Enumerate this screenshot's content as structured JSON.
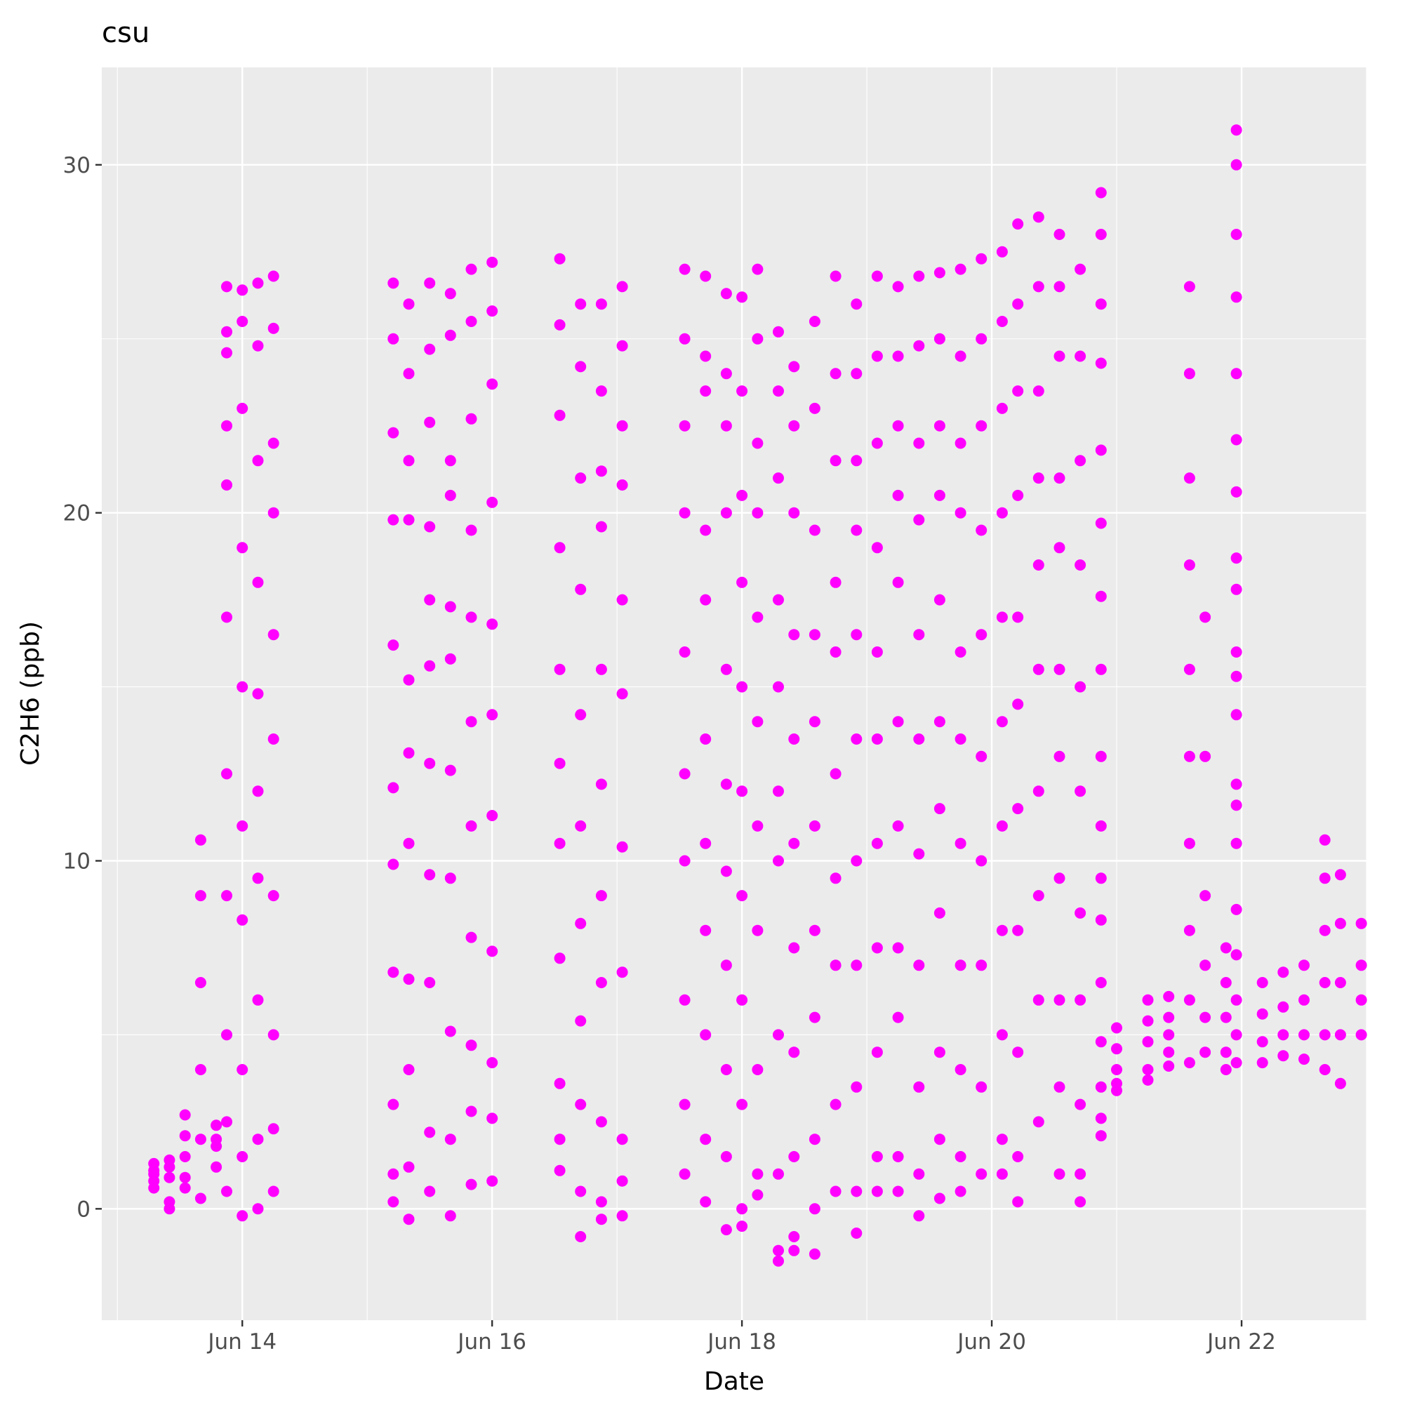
{
  "chart_data": {
    "type": "scatter",
    "title": "csu",
    "xlabel": "Date",
    "ylabel": "C2H6 (ppb)",
    "x_type": "date",
    "x_ticks": [
      "Jun 14",
      "Jun 16",
      "Jun 18",
      "Jun 20",
      "Jun 22"
    ],
    "x_tick_dates": [
      "2022-06-14",
      "2022-06-16",
      "2022-06-18",
      "2022-06-20",
      "2022-06-22"
    ],
    "xlim": [
      "2022-06-12 21:00",
      "2022-06-23 00:00"
    ],
    "y_ticks": [
      0,
      10,
      20,
      30
    ],
    "ylim": [
      -3.2,
      32.8
    ],
    "grid": true,
    "legend": "none",
    "point_color": "#FF00FF",
    "panel_color": "#EBEBEB",
    "series": [
      {
        "note": "point columns sampled by date; each column lists C2H6 readings (ppb)",
        "points": [
          [
            "2022-06-13 07:00",
            [
              1.1,
              0.8,
              1.3,
              0.6,
              1.0
            ]
          ],
          [
            "2022-06-13 10:00",
            [
              1.4,
              0.2,
              0.9,
              1.2,
              0.0
            ]
          ],
          [
            "2022-06-13 13:00",
            [
              2.7,
              1.5,
              0.9,
              2.1,
              0.6
            ]
          ],
          [
            "2022-06-13 16:00",
            [
              10.6,
              9.0,
              6.5,
              4.0,
              2.0,
              0.3
            ]
          ],
          [
            "2022-06-13 19:00",
            [
              2.4,
              1.8,
              1.2,
              2.0
            ]
          ],
          [
            "2022-06-13 21:00",
            [
              26.5,
              25.2,
              24.6,
              22.5,
              20.8,
              17.0,
              12.5,
              9.0,
              5.0,
              2.5,
              0.5
            ]
          ],
          [
            "2022-06-14 00:00",
            [
              26.4,
              25.5,
              23.0,
              19.0,
              15.0,
              11.0,
              8.3,
              4.0,
              1.5,
              -0.2
            ]
          ],
          [
            "2022-06-14 03:00",
            [
              26.6,
              24.8,
              21.5,
              18.0,
              14.8,
              12.0,
              9.5,
              6.0,
              2.0,
              0.0
            ]
          ],
          [
            "2022-06-14 06:00",
            [
              26.8,
              25.3,
              22.0,
              20.0,
              16.5,
              13.5,
              9.0,
              5.0,
              2.3,
              0.5
            ]
          ],
          [
            "2022-06-15 05:00",
            [
              26.6,
              25.0,
              22.3,
              19.8,
              16.2,
              12.1,
              9.9,
              6.8,
              3.0,
              1.0,
              0.2
            ]
          ],
          [
            "2022-06-15 08:00",
            [
              26.0,
              24.0,
              21.5,
              19.8,
              15.2,
              13.1,
              10.5,
              6.6,
              4.0,
              1.2,
              -0.3
            ]
          ],
          [
            "2022-06-15 12:00",
            [
              26.6,
              24.7,
              22.6,
              19.6,
              17.5,
              15.6,
              12.8,
              9.6,
              6.5,
              2.2,
              0.5
            ]
          ],
          [
            "2022-06-15 16:00",
            [
              26.3,
              25.1,
              21.5,
              20.5,
              17.3,
              15.8,
              12.6,
              9.5,
              5.1,
              2.0,
              -0.2
            ]
          ],
          [
            "2022-06-15 20:00",
            [
              27.0,
              25.5,
              22.7,
              19.5,
              17.0,
              14.0,
              11.0,
              7.8,
              4.7,
              2.8,
              0.7
            ]
          ],
          [
            "2022-06-16 00:00",
            [
              27.2,
              25.8,
              23.7,
              20.3,
              16.8,
              14.2,
              11.3,
              7.4,
              4.2,
              2.6,
              0.8
            ]
          ],
          [
            "2022-06-16 13:00",
            [
              27.3,
              25.4,
              22.8,
              19.0,
              15.5,
              12.8,
              10.5,
              7.2,
              3.6,
              2.0,
              1.1
            ]
          ],
          [
            "2022-06-16 17:00",
            [
              26.0,
              24.2,
              21.0,
              17.8,
              14.2,
              11.0,
              8.2,
              5.4,
              3.0,
              0.5,
              -0.8
            ]
          ],
          [
            "2022-06-16 21:00",
            [
              26.0,
              23.5,
              21.2,
              19.6,
              15.5,
              12.2,
              9.0,
              6.5,
              2.5,
              0.2,
              -0.3
            ]
          ],
          [
            "2022-06-17 01:00",
            [
              26.5,
              24.8,
              22.5,
              20.8,
              17.5,
              14.8,
              10.4,
              6.8,
              2.0,
              0.8,
              -0.2
            ]
          ],
          [
            "2022-06-17 13:00",
            [
              27.0,
              25.0,
              22.5,
              20.0,
              16.0,
              12.5,
              10.0,
              6.0,
              3.0,
              1.0
            ]
          ],
          [
            "2022-06-17 17:00",
            [
              26.8,
              24.5,
              23.5,
              19.5,
              17.5,
              13.5,
              10.5,
              8.0,
              5.0,
              2.0,
              0.2
            ]
          ],
          [
            "2022-06-17 21:00",
            [
              26.3,
              24.0,
              22.5,
              20.0,
              15.5,
              12.2,
              9.7,
              7.0,
              4.0,
              1.5,
              -0.6
            ]
          ],
          [
            "2022-06-18 00:00",
            [
              26.2,
              23.5,
              20.5,
              18.0,
              15.0,
              12.0,
              9.0,
              6.0,
              3.0,
              0.0,
              -0.5
            ]
          ],
          [
            "2022-06-18 03:00",
            [
              27.0,
              25.0,
              22.0,
              20.0,
              17.0,
              14.0,
              11.0,
              8.0,
              4.0,
              1.0,
              0.4
            ]
          ],
          [
            "2022-06-18 07:00",
            [
              25.2,
              23.5,
              21.0,
              17.5,
              15.0,
              12.0,
              10.0,
              5.0,
              1.0,
              -1.2,
              -1.5
            ]
          ],
          [
            "2022-06-18 10:00",
            [
              24.2,
              22.5,
              20.0,
              16.5,
              13.5,
              10.5,
              7.5,
              4.5,
              1.5,
              -0.8,
              -1.2
            ]
          ],
          [
            "2022-06-18 14:00",
            [
              25.5,
              23.0,
              19.5,
              16.5,
              14.0,
              11.0,
              8.0,
              5.5,
              2.0,
              0.0,
              -1.3
            ]
          ],
          [
            "2022-06-18 18:00",
            [
              26.8,
              24.0,
              21.5,
              18.0,
              16.0,
              12.5,
              9.5,
              7.0,
              3.0,
              0.5
            ]
          ],
          [
            "2022-06-18 22:00",
            [
              26.0,
              24.0,
              21.5,
              19.5,
              16.5,
              13.5,
              10.0,
              7.0,
              3.5,
              0.5,
              -0.7
            ]
          ],
          [
            "2022-06-19 02:00",
            [
              26.8,
              24.5,
              22.0,
              19.0,
              16.0,
              13.5,
              10.5,
              7.5,
              4.5,
              1.5,
              0.5
            ]
          ],
          [
            "2022-06-19 06:00",
            [
              26.5,
              24.5,
              22.5,
              20.5,
              18.0,
              14.0,
              11.0,
              7.5,
              5.5,
              1.5,
              0.5
            ]
          ],
          [
            "2022-06-19 10:00",
            [
              26.8,
              24.8,
              22.0,
              19.8,
              16.5,
              13.5,
              10.2,
              7.0,
              3.5,
              1.0,
              -0.2
            ]
          ],
          [
            "2022-06-19 14:00",
            [
              26.9,
              25.0,
              22.5,
              20.5,
              17.5,
              14.0,
              11.5,
              8.5,
              4.5,
              2.0,
              0.3
            ]
          ],
          [
            "2022-06-19 18:00",
            [
              27.0,
              24.5,
              22.0,
              20.0,
              16.0,
              13.5,
              10.5,
              7.0,
              4.0,
              1.5,
              0.5
            ]
          ],
          [
            "2022-06-19 22:00",
            [
              27.3,
              25.0,
              22.5,
              19.5,
              16.5,
              13.0,
              10.0,
              7.0,
              3.5,
              1.0
            ]
          ],
          [
            "2022-06-20 02:00",
            [
              27.5,
              25.5,
              23.0,
              20.0,
              17.0,
              14.0,
              11.0,
              8.0,
              5.0,
              2.0,
              1.0
            ]
          ],
          [
            "2022-06-20 05:00",
            [
              28.3,
              26.0,
              23.5,
              20.5,
              17.0,
              14.5,
              11.5,
              8.0,
              4.5,
              1.5,
              0.2
            ]
          ],
          [
            "2022-06-20 09:00",
            [
              28.5,
              26.5,
              23.5,
              21.0,
              18.5,
              15.5,
              12.0,
              9.0,
              6.0,
              2.5
            ]
          ],
          [
            "2022-06-20 13:00",
            [
              28.0,
              26.5,
              24.5,
              21.0,
              19.0,
              15.5,
              13.0,
              9.5,
              6.0,
              3.5,
              1.0
            ]
          ],
          [
            "2022-06-20 17:00",
            [
              27.0,
              24.5,
              21.5,
              18.5,
              15.0,
              12.0,
              8.5,
              6.0,
              3.0,
              1.0,
              0.2
            ]
          ],
          [
            "2022-06-20 21:00",
            [
              29.2,
              28.0,
              26.0,
              24.3,
              21.8,
              19.7,
              17.6,
              15.5,
              13.0,
              11.0,
              9.5,
              8.3,
              6.5,
              4.8,
              3.5,
              2.6,
              2.1
            ]
          ],
          [
            "2022-06-21 00:00",
            [
              5.2,
              4.6,
              4.0,
              3.6,
              3.4
            ]
          ],
          [
            "2022-06-21 06:00",
            [
              6.0,
              5.4,
              4.8,
              4.0,
              3.7
            ]
          ],
          [
            "2022-06-21 10:00",
            [
              6.1,
              5.5,
              5.0,
              4.5,
              4.1
            ]
          ],
          [
            "2022-06-21 14:00",
            [
              26.5,
              24.0,
              21.0,
              18.5,
              15.5,
              13.0,
              10.5,
              8.0,
              6.0,
              4.2
            ]
          ],
          [
            "2022-06-21 17:00",
            [
              17.0,
              13.0,
              9.0,
              7.0,
              5.5,
              4.5
            ]
          ],
          [
            "2022-06-21 21:00",
            [
              7.5,
              6.5,
              5.5,
              4.5,
              4.0
            ]
          ],
          [
            "2022-06-21 23:00",
            [
              31.0,
              30.0,
              28.0,
              26.2,
              24.0,
              22.1,
              20.6,
              18.7,
              17.8,
              16.0,
              15.3,
              14.2,
              12.2,
              11.6,
              10.5,
              8.6,
              7.3,
              6.0,
              5.0,
              4.2
            ]
          ],
          [
            "2022-06-22 04:00",
            [
              6.5,
              5.6,
              4.8,
              4.2
            ]
          ],
          [
            "2022-06-22 08:00",
            [
              6.8,
              5.8,
              5.0,
              4.4
            ]
          ],
          [
            "2022-06-22 12:00",
            [
              7.0,
              6.0,
              5.0,
              4.3
            ]
          ],
          [
            "2022-06-22 16:00",
            [
              10.6,
              9.5,
              8.0,
              6.5,
              5.0,
              4.0
            ]
          ],
          [
            "2022-06-22 19:00",
            [
              9.6,
              8.2,
              6.5,
              5.0,
              3.6
            ]
          ],
          [
            "2022-06-22 23:00",
            [
              8.2,
              7.0,
              6.0,
              5.0
            ]
          ]
        ]
      }
    ]
  }
}
